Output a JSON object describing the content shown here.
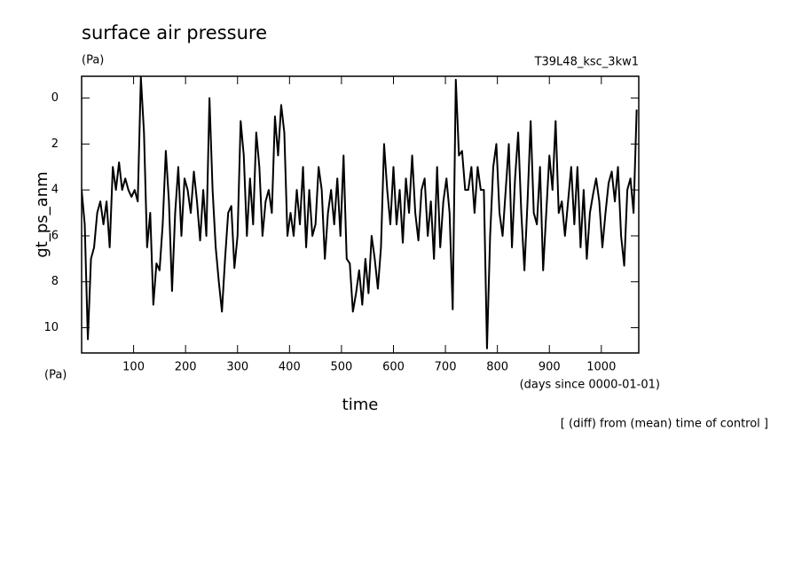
{
  "chart_data": {
    "type": "line",
    "title": "surface air pressure",
    "unit_top": "(Pa)",
    "run_label": "T39L48_ksc_3kw1",
    "y_label": "gt_ps_anm",
    "unit_bottom": "(Pa)",
    "x_label": "time",
    "x_unit": "(days since 0000-01-01)",
    "note": "[ (diff) from (mean) time of control ]",
    "color": "#000000",
    "y_reversed": true,
    "xlim": [
      0,
      1072
    ],
    "ylim": [
      -0.95,
      11.1
    ],
    "xticks": [
      100,
      200,
      300,
      400,
      500,
      600,
      700,
      800,
      900,
      1000
    ],
    "yticks": [
      0,
      2,
      4,
      6,
      8,
      10
    ],
    "x": [
      0,
      6,
      12,
      18,
      24,
      30,
      36,
      42,
      48,
      54,
      60,
      66,
      72,
      78,
      84,
      90,
      96,
      102,
      108,
      114,
      120,
      126,
      132,
      138,
      144,
      150,
      156,
      162,
      168,
      174,
      180,
      186,
      192,
      198,
      204,
      210,
      216,
      222,
      228,
      234,
      240,
      246,
      252,
      258,
      264,
      270,
      276,
      282,
      288,
      294,
      300,
      306,
      312,
      318,
      324,
      330,
      336,
      342,
      348,
      354,
      360,
      366,
      372,
      378,
      384,
      390,
      396,
      402,
      408,
      414,
      420,
      426,
      432,
      438,
      444,
      450,
      456,
      462,
      468,
      474,
      480,
      486,
      492,
      498,
      504,
      510,
      516,
      522,
      528,
      534,
      540,
      546,
      552,
      558,
      564,
      570,
      576,
      582,
      588,
      594,
      600,
      606,
      612,
      618,
      624,
      630,
      636,
      642,
      648,
      654,
      660,
      666,
      672,
      678,
      684,
      690,
      696,
      702,
      708,
      714,
      720,
      726,
      732,
      738,
      744,
      750,
      756,
      762,
      768,
      774,
      780,
      786,
      792,
      798,
      804,
      810,
      816,
      822,
      828,
      834,
      840,
      846,
      852,
      858,
      864,
      870,
      876,
      882,
      888,
      894,
      900,
      906,
      912,
      918,
      924,
      930,
      936,
      942,
      948,
      954,
      960,
      966,
      972,
      978,
      984,
      990,
      996,
      1002,
      1008,
      1014,
      1020,
      1026,
      1032,
      1038,
      1044,
      1050,
      1056,
      1062,
      1068
    ],
    "values": [
      4,
      5.5,
      10.5,
      7,
      6.5,
      5,
      4.5,
      5.5,
      4.5,
      6.5,
      3,
      4,
      2.8,
      4,
      3.5,
      4,
      4.3,
      4,
      4.5,
      -0.9,
      1.5,
      6.5,
      5,
      9,
      7.2,
      7.5,
      5.5,
      2.3,
      4.5,
      8.4,
      5,
      3,
      6,
      3.5,
      4,
      5,
      3.2,
      4.5,
      6.2,
      4,
      6,
      0,
      4,
      6.5,
      8,
      9.3,
      7,
      5,
      4.7,
      7.4,
      6,
      1,
      2.5,
      6,
      3.5,
      5.5,
      1.5,
      3,
      6,
      4.5,
      4,
      5,
      0.8,
      2.5,
      0.3,
      1.5,
      6,
      5,
      6,
      4,
      5.5,
      3,
      6.5,
      4,
      6,
      5.5,
      3,
      4,
      7,
      5,
      4,
      5.5,
      3.5,
      6,
      2.5,
      7,
      7.2,
      9.3,
      8.5,
      7.5,
      9,
      7,
      8.5,
      6,
      7,
      8.3,
      6.5,
      2,
      4,
      5.5,
      3,
      5.5,
      4,
      6.3,
      3.5,
      5,
      2.5,
      5,
      6.2,
      4,
      3.5,
      6,
      4.5,
      7,
      3,
      6.5,
      4.5,
      3.5,
      5,
      9.2,
      -0.8,
      2.5,
      2.3,
      4,
      4,
      3,
      5,
      3,
      4,
      4,
      10.9,
      6,
      3,
      2,
      5,
      6,
      4,
      2,
      6.5,
      3.5,
      1.5,
      5,
      7.5,
      4.5,
      1,
      5,
      5.5,
      3,
      7.5,
      5,
      2.5,
      4,
      1,
      5,
      4.5,
      6,
      4.5,
      3,
      5.5,
      3,
      6.5,
      4,
      7,
      5,
      4.2,
      3.5,
      4.5,
      6.5,
      5,
      3.7,
      3.2,
      4.5,
      3,
      6,
      7.3,
      4,
      3.5,
      5,
      0.5
    ]
  }
}
